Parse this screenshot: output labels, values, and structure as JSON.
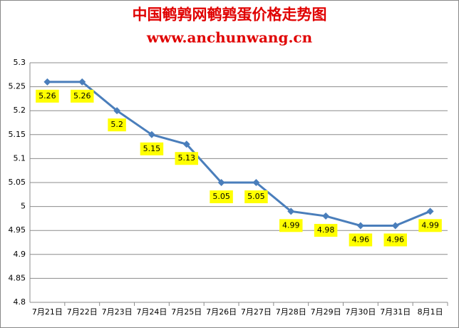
{
  "chart_data": {
    "type": "line",
    "title": "中国鹌鹑网鹌鹑蛋价格走势图",
    "subtitle": "www.anchunwang.cn",
    "categories": [
      "7月21日",
      "7月22日",
      "7月23日",
      "7月24日",
      "7月25日",
      "7月26日",
      "7月27日",
      "7月28日",
      "7月29日",
      "7月30日",
      "7月31日",
      "8月1日"
    ],
    "series": [
      {
        "color": "#4a7ebb",
        "values": [
          5.26,
          5.26,
          5.2,
          5.15,
          5.13,
          5.05,
          5.05,
          4.99,
          4.98,
          4.96,
          4.96,
          4.99
        ]
      }
    ],
    "ylim": [
      4.8,
      5.3
    ],
    "yticks": [
      4.8,
      4.85,
      4.9,
      4.95,
      5,
      5.05,
      5.1,
      5.15,
      5.2,
      5.25,
      5.3
    ],
    "grid": true
  }
}
